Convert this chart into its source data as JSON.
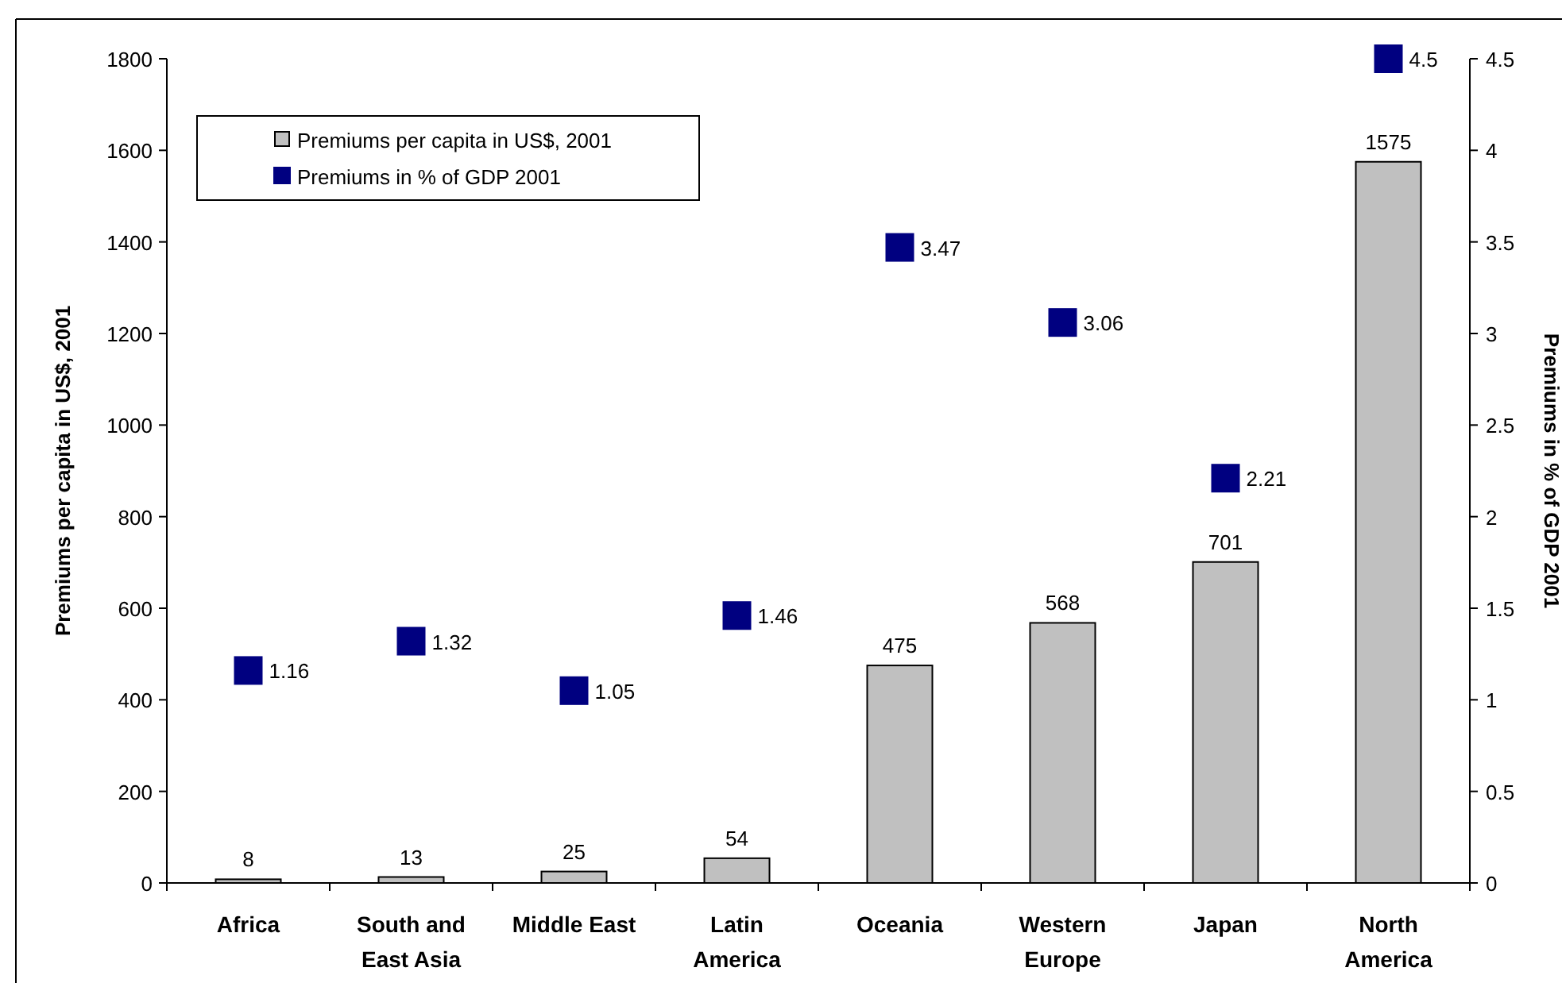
{
  "chart_data": {
    "type": "bar",
    "categories": [
      "Africa",
      "South and East Asia",
      "Middle East",
      "Latin America",
      "Oceania",
      "Western Europe",
      "Japan",
      "North America"
    ],
    "ylabel": "Premiums per capita in US$, 2001",
    "y2label": "Premiums in % of GDP 2001",
    "ylim": [
      0,
      1800
    ],
    "yticks": [
      0,
      200,
      400,
      600,
      800,
      1000,
      1200,
      1400,
      1600,
      1800
    ],
    "y2lim": [
      0,
      4.5
    ],
    "y2ticks": [
      0,
      0.5,
      1,
      1.5,
      2,
      2.5,
      3,
      3.5,
      4,
      4.5
    ],
    "series": [
      {
        "name": "Premiums per capita in US$, 2001",
        "color": "#c0c0c0",
        "values": [
          8,
          13,
          25,
          54,
          475,
          568,
          701,
          1575
        ]
      },
      {
        "name": "Premiums in % of GDP 2001",
        "type": "scatter",
        "axis": "y2",
        "marker": "square",
        "color": "#000080",
        "values": [
          1.16,
          1.32,
          1.05,
          1.46,
          3.47,
          3.06,
          2.21,
          4.5
        ]
      }
    ],
    "data_labels": true,
    "legend": "top left",
    "grid": false
  }
}
